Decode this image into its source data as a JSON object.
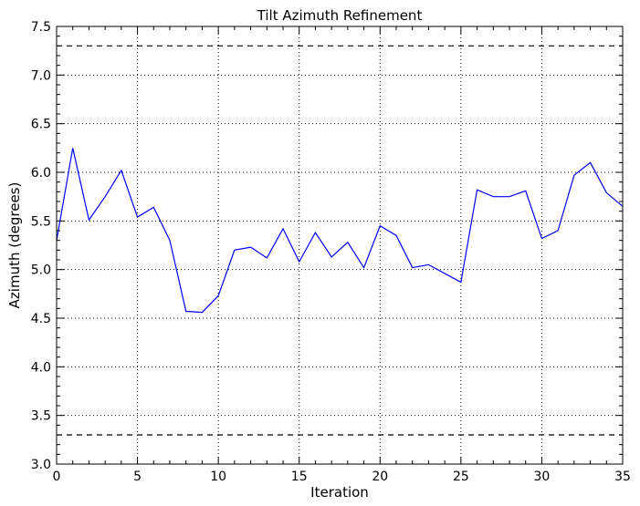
{
  "chart_data": {
    "type": "line",
    "title": "Tilt Azimuth Refinement",
    "xlabel": "Iteration",
    "ylabel": "Azimuth (degrees)",
    "xlim": [
      0,
      35
    ],
    "ylim": [
      3.0,
      7.5
    ],
    "xticks": [
      0,
      5,
      10,
      15,
      20,
      25,
      30,
      35
    ],
    "yticks": [
      3.0,
      3.5,
      4.0,
      4.5,
      5.0,
      5.5,
      6.0,
      6.5,
      7.0,
      7.5
    ],
    "xtick_labels": [
      "0",
      "5",
      "10",
      "15",
      "20",
      "25",
      "30",
      "35"
    ],
    "ytick_labels": [
      "3.0",
      "3.5",
      "4.0",
      "4.5",
      "5.0",
      "5.5",
      "6.0",
      "6.5",
      "7.0",
      "7.5"
    ],
    "grid": true,
    "series": [
      {
        "color": "#0000ff",
        "style": "solid",
        "x": [
          0,
          1,
          2,
          3,
          4,
          5,
          6,
          7,
          8,
          9,
          10,
          11,
          12,
          13,
          14,
          15,
          16,
          17,
          18,
          19,
          20,
          21,
          22,
          23,
          24,
          25,
          26,
          27,
          28,
          29,
          30,
          31,
          32,
          33,
          34,
          35
        ],
        "values": [
          5.3,
          6.25,
          5.51,
          5.75,
          6.02,
          5.54,
          5.64,
          5.3,
          4.57,
          4.56,
          4.73,
          5.2,
          5.23,
          5.12,
          5.42,
          5.08,
          5.38,
          5.13,
          5.28,
          5.02,
          5.45,
          5.35,
          5.02,
          5.05,
          4.96,
          4.87,
          5.82,
          5.75,
          5.75,
          5.81,
          5.32,
          5.4,
          5.97,
          6.1,
          5.79,
          5.65
        ]
      }
    ],
    "reference_lines": [
      {
        "y": 7.3,
        "color": "#000000",
        "style": "dashed"
      },
      {
        "y": 3.3,
        "color": "#000000",
        "style": "dashed"
      }
    ]
  }
}
